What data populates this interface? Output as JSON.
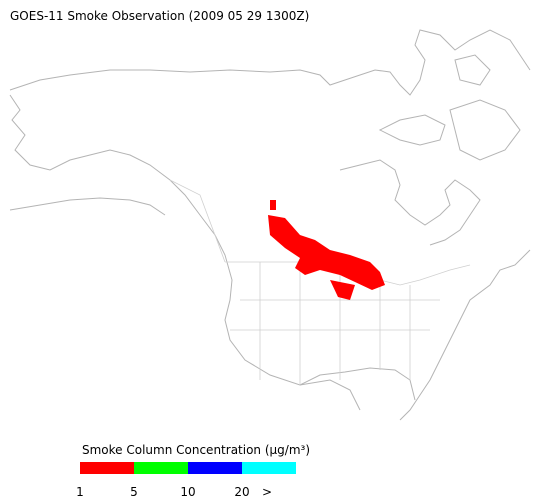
{
  "title": "GOES-11 Smoke Observation (2009 05 29  1300Z)",
  "legend": {
    "title": "Smoke Column Concentration (μg/m³)",
    "colors": [
      "#ff0000",
      "#00ff00",
      "#0000ff",
      "#00ffff"
    ],
    "labels": [
      "1",
      "5",
      "10",
      "20",
      ">"
    ]
  }
}
